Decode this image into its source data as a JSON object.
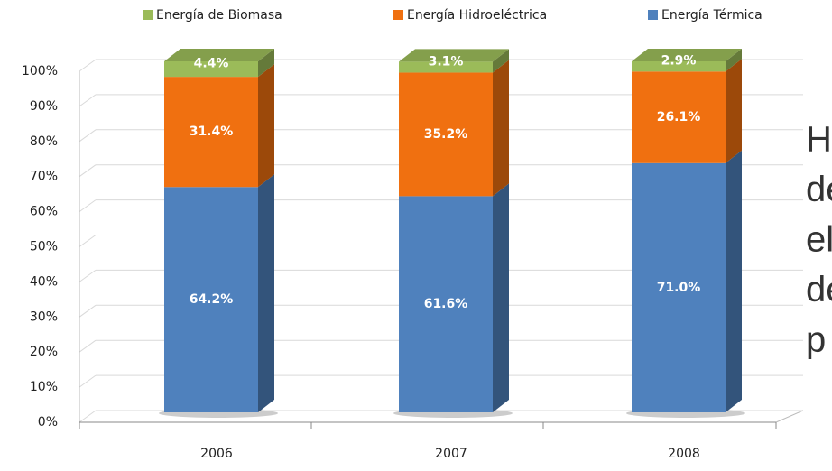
{
  "chart_data": {
    "type": "stacked_bar_3d",
    "categories": [
      "2006",
      "2007",
      "2008"
    ],
    "series": [
      {
        "name": "Energía de Biomasa",
        "color": "#9bbb59",
        "values": [
          4.4,
          3.1,
          2.9
        ],
        "value_labels": [
          "4.4%",
          "3.1%",
          "2.9%"
        ]
      },
      {
        "name": "Energía Hidroeléctrica",
        "color": "#f07010",
        "values": [
          31.4,
          35.2,
          26.1
        ],
        "value_labels": [
          "31.4%",
          "35.2%",
          "26.1%"
        ]
      },
      {
        "name": "Energía Térmica",
        "color": "#4f81bd",
        "values": [
          64.2,
          61.6,
          71.0
        ],
        "value_labels": [
          "64.2%",
          "61.6%",
          "71.0%"
        ]
      }
    ],
    "ylim": [
      0,
      100
    ],
    "yticks": [
      {
        "value": 0,
        "label": "0%"
      },
      {
        "value": 10,
        "label": "10%"
      },
      {
        "value": 20,
        "label": "20%"
      },
      {
        "value": 30,
        "label": "30%"
      },
      {
        "value": 40,
        "label": "40%"
      },
      {
        "value": 50,
        "label": "50%"
      },
      {
        "value": 60,
        "label": "60%"
      },
      {
        "value": 70,
        "label": "70%"
      },
      {
        "value": 80,
        "label": "80%"
      },
      {
        "value": 90,
        "label": "90%"
      },
      {
        "value": 100,
        "label": "100%"
      }
    ],
    "grid": true,
    "legend": "top",
    "annotation_lines": [
      "H",
      "de",
      "el",
      "de",
      "p"
    ]
  }
}
